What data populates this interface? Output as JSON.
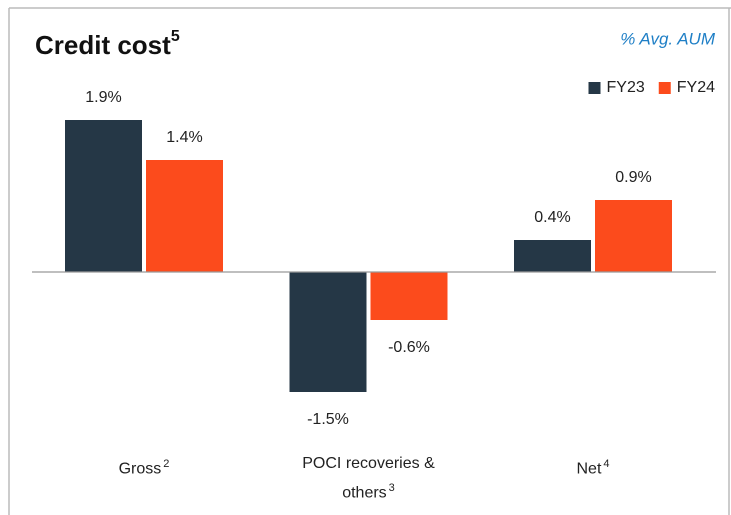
{
  "chart_data": {
    "type": "bar",
    "title": "Credit cost",
    "title_footnote": "5",
    "subtitle": "% Avg. AUM",
    "categories": [
      "Gross",
      "POCI recoveries & others",
      "Net"
    ],
    "category_footnotes": [
      "2",
      "3",
      "4"
    ],
    "series": [
      {
        "name": "FY23",
        "color": "#253746",
        "values": [
          1.9,
          -1.5,
          0.4
        ],
        "value_labels": [
          "1.9%",
          "-1.5%",
          "0.4%"
        ]
      },
      {
        "name": "FY24",
        "color": "#fc4b1c",
        "values": [
          1.4,
          -0.6,
          0.9
        ],
        "value_labels": [
          "1.4%",
          "-0.6%",
          "0.9%"
        ]
      }
    ],
    "ylim": [
      -2,
      2.5
    ],
    "legend": "top-right"
  }
}
